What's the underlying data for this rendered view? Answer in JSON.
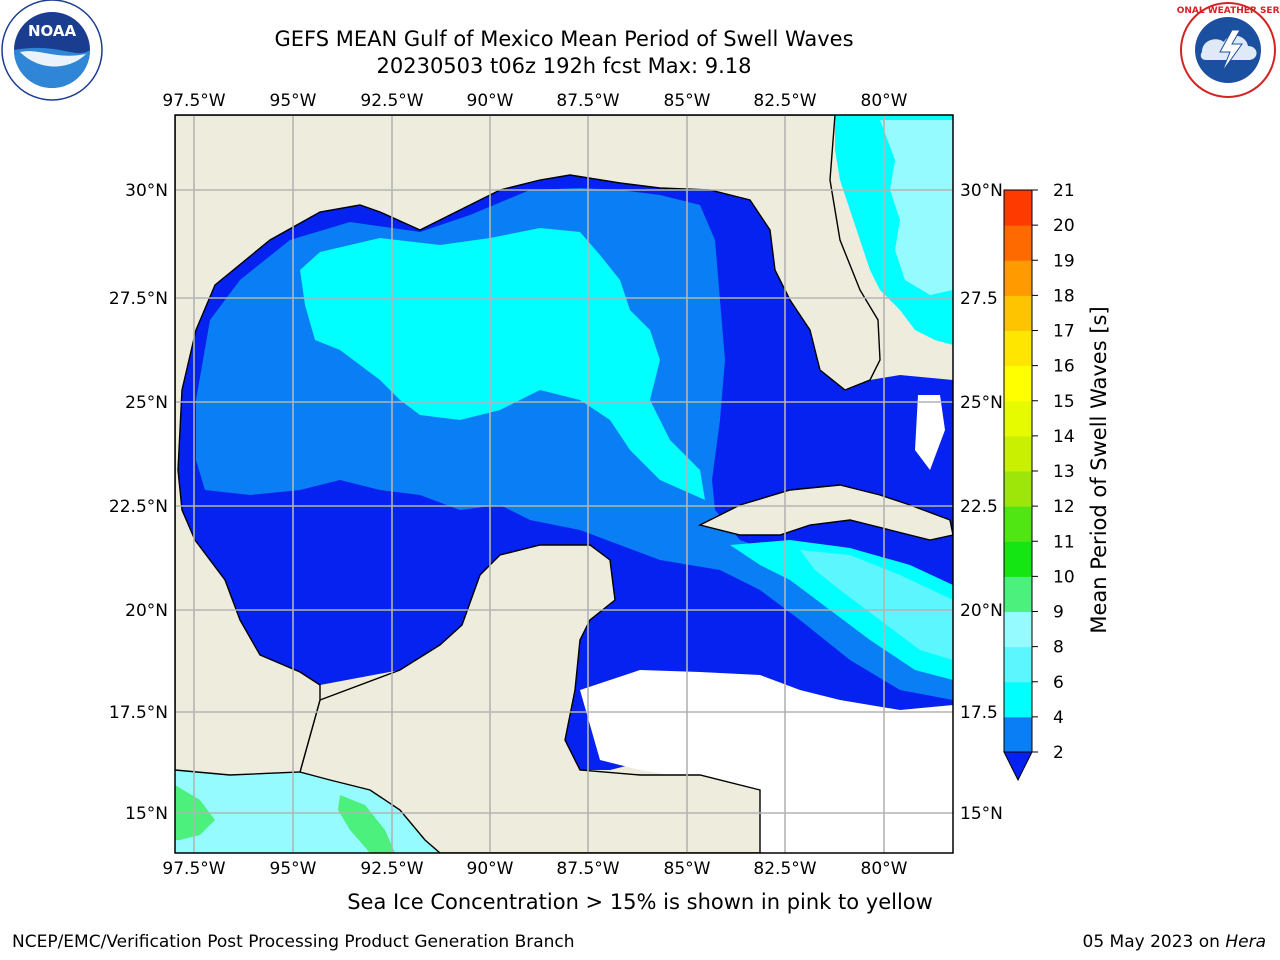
{
  "header": {
    "title_line1": "GEFS MEAN Gulf of Mexico Mean Period of Swell Waves",
    "title_line2": "20230503 t06z 192h fcst   Max: 9.18"
  },
  "logos": {
    "left": "NOAA",
    "right": "NATIONAL WEATHER SERVICE"
  },
  "map": {
    "lon_labels": [
      "97.5°W",
      "95°W",
      "92.5°W",
      "90°W",
      "87.5°W",
      "85°W",
      "82.5°W",
      "80°W"
    ],
    "lat_labels_left": [
      "30°N",
      "27.5°N",
      "25°N",
      "22.5°N",
      "20°N",
      "17.5°N",
      "15°N"
    ],
    "lat_labels_right": [
      "30°N",
      "27.5",
      "25°N",
      "22.5",
      "20°N",
      "17.5",
      "15°N"
    ],
    "colors": {
      "land": "#edecdd",
      "grid": "#b4b4b4",
      "blue_2": "#0522f0",
      "blue_4": "#0a7ef5",
      "cyan_6": "#00ffff",
      "cyan_8": "#5cf6ff",
      "cyan_9": "#96fbff",
      "green_10": "#4cf07c"
    }
  },
  "colorbar": {
    "label": "Mean Period of Swell Waves [s]",
    "ticks": [
      "2",
      "4",
      "6",
      "8",
      "9",
      "10",
      "11",
      "12",
      "13",
      "14",
      "15",
      "16",
      "17",
      "18",
      "19",
      "20",
      "21"
    ],
    "colors": [
      "#0a7ef5",
      "#00ffff",
      "#5cf6ff",
      "#96fbff",
      "#4cf07c",
      "#14e614",
      "#50e614",
      "#9ee60a",
      "#c8f000",
      "#e6fa00",
      "#ffff00",
      "#ffe600",
      "#ffc400",
      "#ff9a00",
      "#ff6a00",
      "#ff3a00"
    ],
    "under_color": "#0522f0"
  },
  "caption": "Sea Ice Concentration > 15% is shown in pink to yellow",
  "footer": {
    "left": "NCEP/EMC/Verification Post Processing Product Generation Branch",
    "right_date": "05 May 2023 on",
    "right_machine": "Hera"
  }
}
